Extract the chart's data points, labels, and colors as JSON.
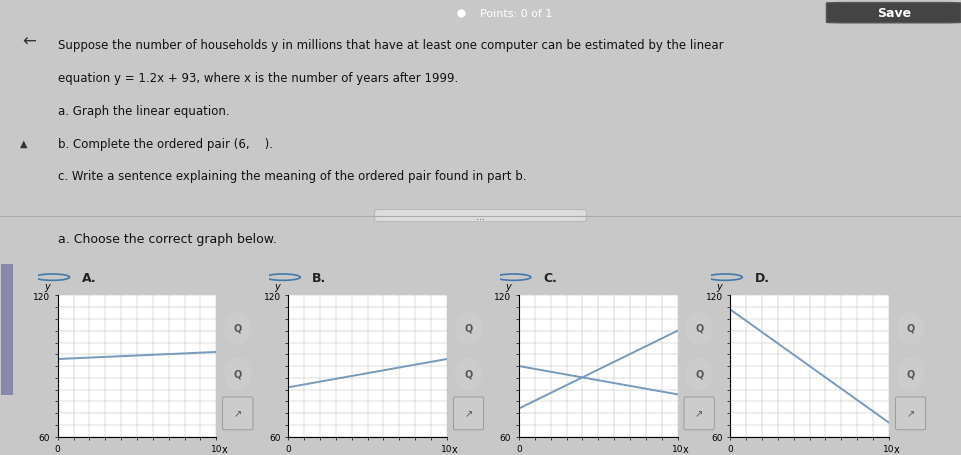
{
  "bg_color": "#c8c8c8",
  "top_bar_color": "#2a4a7a",
  "content_bg": "#d8d8d8",
  "graph_bg": "white",
  "points_text": "Points: 0 of 1",
  "save_text": "Save",
  "back_arrow": "←",
  "line1": "Suppose the number of households y in millions that have at least one computer can be estimated by the linear",
  "line2": "equation y = 1.2x + 93, where x is the number of years after 1999.",
  "line3": "a. Graph the linear equation.",
  "line4": "b. Complete the ordered pair (6,    ).",
  "line5": "c. Write a sentence explaining the meaning of the ordered pair found in part b.",
  "dots_text": "...",
  "choose_text": "a. Choose the correct graph below.",
  "graph_labels": [
    "A.",
    "B.",
    "C.",
    "D."
  ],
  "xmin": 0,
  "xmax": 10,
  "ymin": 60,
  "ymax": 120,
  "slope": 1.2,
  "intercept": 93,
  "line_color": "#7799bb",
  "grid_color": "#aaaaaa",
  "graph_A_line": [
    [
      0,
      10
    ],
    [
      93,
      96
    ]
  ],
  "graph_B_line": [
    [
      0,
      10
    ],
    [
      81,
      93
    ]
  ],
  "graph_C_line1": [
    [
      0,
      10
    ],
    [
      72,
      105
    ]
  ],
  "graph_C_line2": [
    [
      0,
      10
    ],
    [
      90,
      78
    ]
  ],
  "graph_D_line": [
    [
      0,
      10
    ],
    [
      114,
      66
    ]
  ],
  "zoom_icon_color": "#aaaaaa",
  "radio_color": "#4477aa",
  "sidebar_color": "#8888aa"
}
